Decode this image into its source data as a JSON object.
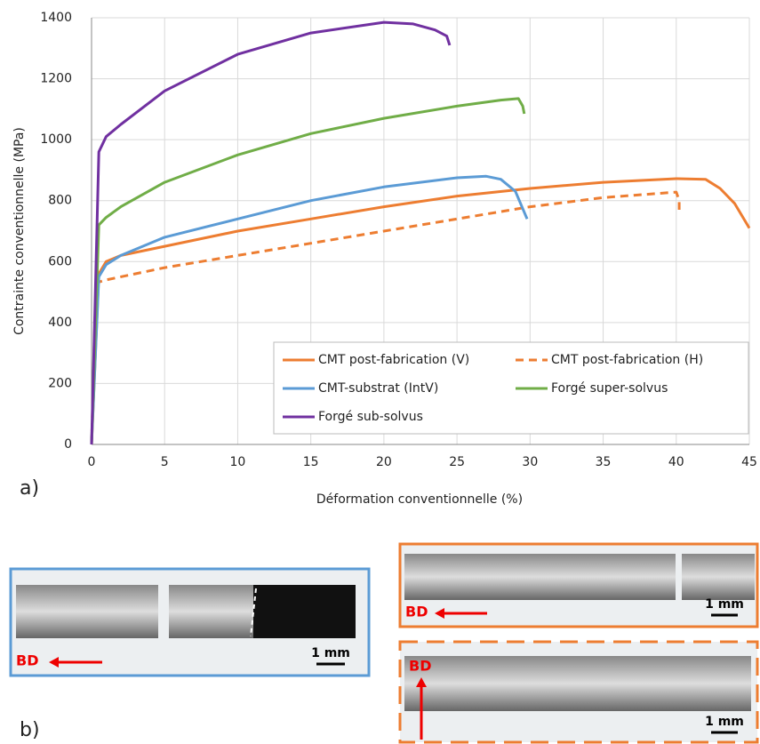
{
  "chart_data": {
    "type": "line",
    "xlabel": "Déformation conventionnelle (%)",
    "ylabel": "Contrainte conventionnelle (MPa)",
    "xlim": [
      0,
      45
    ],
    "xticks": [
      0,
      5,
      10,
      15,
      20,
      25,
      30,
      35,
      40,
      45
    ],
    "ylim": [
      0,
      1400
    ],
    "yticks": [
      0,
      200,
      400,
      600,
      800,
      1000,
      1200,
      1400
    ],
    "grid": true,
    "legend": "lower right",
    "series": [
      {
        "name": "CMT post-fabrication (V)",
        "color": "#ed7d31",
        "dashed": false,
        "x": [
          0,
          0.5,
          1,
          2,
          5,
          10,
          15,
          20,
          25,
          30,
          35,
          40,
          42,
          43,
          44,
          45
        ],
        "values": [
          0,
          560,
          600,
          620,
          650,
          700,
          740,
          780,
          815,
          840,
          860,
          872,
          870,
          840,
          790,
          710
        ]
      },
      {
        "name": "CMT post-fabrication (H)",
        "color": "#ed7d31",
        "dashed": true,
        "x": [
          0,
          0.3,
          1,
          5,
          10,
          15,
          20,
          25,
          30,
          35,
          40,
          40.2,
          40.2
        ],
        "values": [
          0,
          530,
          540,
          580,
          620,
          660,
          700,
          740,
          780,
          810,
          828,
          800,
          770
        ]
      },
      {
        "name": "CMT-substrat (IntV)",
        "color": "#5b9bd5",
        "dashed": false,
        "x": [
          0,
          0.5,
          1,
          2,
          5,
          10,
          15,
          20,
          25,
          27,
          28,
          29,
          29.8
        ],
        "values": [
          0,
          550,
          590,
          620,
          680,
          740,
          800,
          845,
          875,
          880,
          870,
          830,
          740
        ]
      },
      {
        "name": "Forgé super-solvus",
        "color": "#70ad47",
        "dashed": false,
        "x": [
          0,
          0.5,
          1,
          2,
          5,
          10,
          15,
          20,
          25,
          28,
          29.2,
          29.5,
          29.6
        ],
        "values": [
          0,
          720,
          745,
          780,
          860,
          950,
          1020,
          1070,
          1110,
          1130,
          1135,
          1110,
          1085
        ]
      },
      {
        "name": "Forgé sub-solvus",
        "color": "#7030a0",
        "dashed": false,
        "x": [
          0,
          0.5,
          1,
          2,
          5,
          10,
          15,
          20,
          22,
          23.5,
          24.3,
          24.5
        ],
        "values": [
          0,
          960,
          1010,
          1050,
          1160,
          1280,
          1350,
          1385,
          1380,
          1360,
          1340,
          1310
        ]
      }
    ]
  },
  "panels": {
    "a": "a)",
    "b": "b)"
  },
  "photos": [
    {
      "direction": "BD",
      "scale": "1 mm",
      "border": "#5b9bd5"
    },
    {
      "direction": "BD",
      "scale": "1 mm",
      "border": "#ed7d31"
    },
    {
      "direction": "BD",
      "scale": "1 mm",
      "border": "#ed7d31"
    }
  ]
}
